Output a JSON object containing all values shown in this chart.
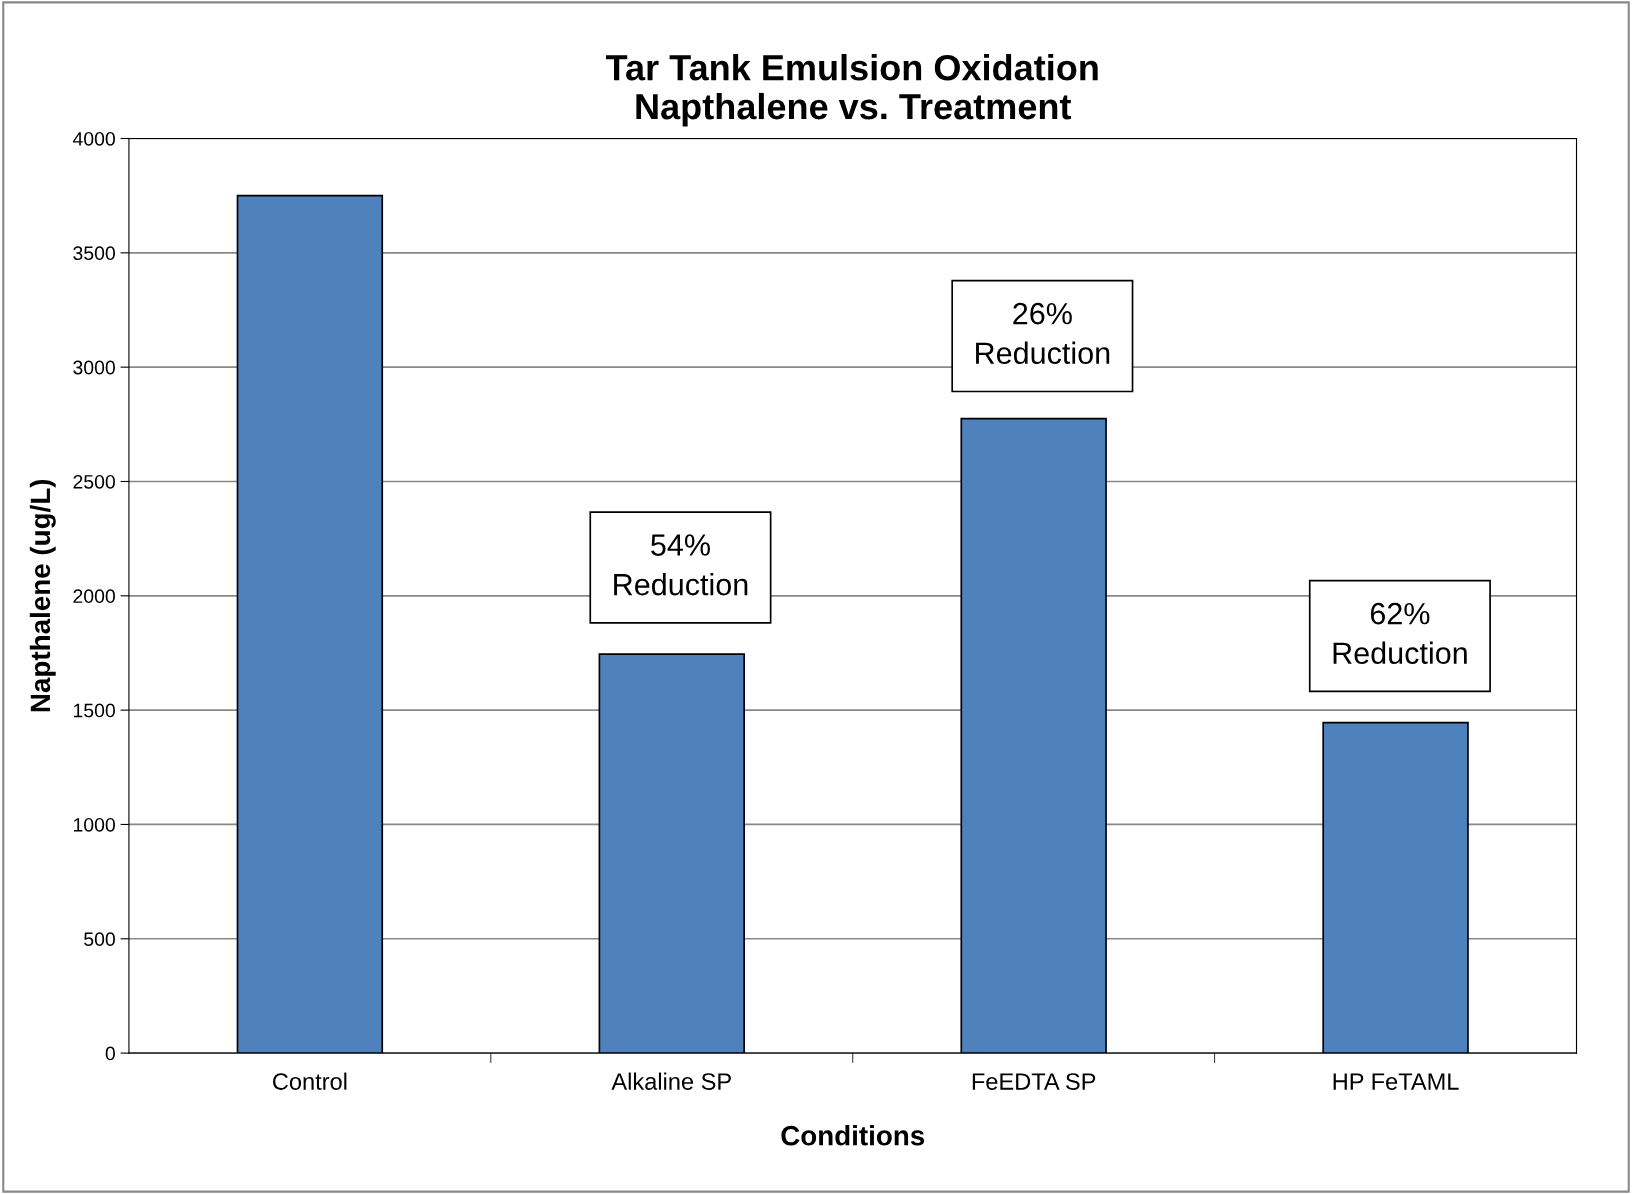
{
  "chart_data": {
    "type": "bar",
    "title": "Tar Tank Emulsion Oxidation\nNapthalene vs. Treatment",
    "xlabel": "Conditions",
    "ylabel": "Napthalene (ug/L)",
    "categories": [
      "Control",
      "Alkaline SP",
      "FeEDTA SP",
      "HP FeTAML"
    ],
    "values": [
      3750,
      1745,
      2775,
      1445
    ],
    "color": "#4f81bd",
    "ylim": [
      0,
      4000
    ],
    "yticks": [
      0,
      500,
      1000,
      1500,
      2000,
      2500,
      3000,
      3500,
      4000
    ],
    "grid": "y",
    "annotations": [
      "54%\nReduction",
      "26%\nReduction",
      "62%\nReduction"
    ]
  }
}
